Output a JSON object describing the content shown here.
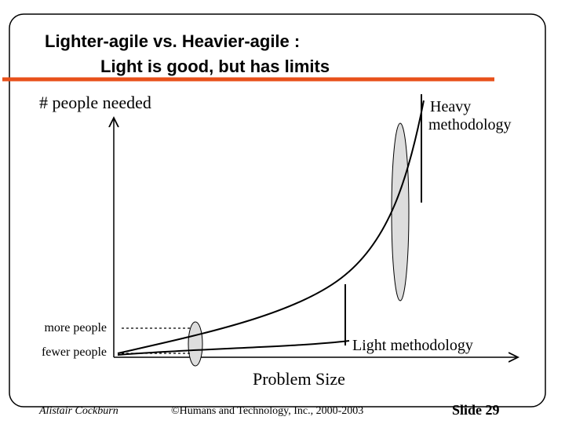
{
  "header": {
    "title_line1": "Lighter-agile vs. Heavier-agile :",
    "title_line2": "Light is good, but has limits"
  },
  "diagram": {
    "y_axis_label": "# people needed",
    "x_axis_label": "Problem Size",
    "heavy_label_line1": "Heavy",
    "heavy_label_line2": "methodology",
    "light_label": "Light methodology",
    "more_people": "more people",
    "fewer_people": "fewer people"
  },
  "footer": {
    "author": "Alistair Cockburn",
    "copyright": "©Humans and Technology, Inc., 2000-2003",
    "slide": "Slide 29"
  }
}
